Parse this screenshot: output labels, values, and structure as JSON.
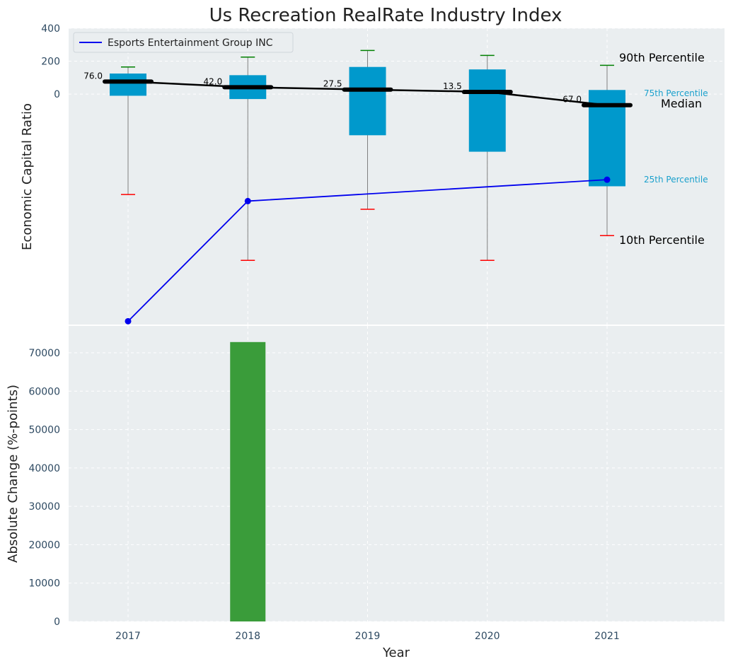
{
  "title": "Us Recreation RealRate Industry Index",
  "colors": {
    "panel_bg": "#eaeef0",
    "box": "#0099cc",
    "median_line": "#000000",
    "whisker_top": "#008000",
    "whisker_bottom": "#ff0000",
    "company_line": "#0000ee",
    "bar": "#3a9c3a"
  },
  "chart_data": [
    {
      "type": "box",
      "ylabel": "Economic Capital Ratio",
      "yticks": [
        "0",
        "200",
        "400"
      ],
      "ylim": [
        -1400,
        400
      ],
      "categories": [
        "2017",
        "2018",
        "2019",
        "2020",
        "2021"
      ],
      "p10": [
        -610,
        -1010,
        -700,
        -1010,
        -860
      ],
      "p25": [
        -10,
        -30,
        -250,
        -350,
        -560
      ],
      "median": [
        76.0,
        42.0,
        27.5,
        13.5,
        -67.0
      ],
      "median_labels": [
        "76.0",
        "42.0",
        "27.5",
        "13.5",
        "-67.0"
      ],
      "p75": [
        125,
        115,
        165,
        150,
        25
      ],
      "p90": [
        165,
        225,
        265,
        235,
        175
      ],
      "series": [
        {
          "name": "Esports Entertainment Group INC",
          "values": [
            -1380,
            -650,
            null,
            null,
            -520
          ]
        }
      ],
      "legend": "top-left",
      "annotations": {
        "p90": "90th Percentile",
        "p75": "75th Percentile",
        "median": "Median",
        "p25": "25th Percentile",
        "p10": "10th Percentile"
      }
    },
    {
      "type": "bar",
      "categories": [
        "2017",
        "2018",
        "2019",
        "2020",
        "2021"
      ],
      "values": [
        0,
        72800,
        0,
        0,
        0
      ],
      "ylabel": "Absolute Change (%-points)",
      "xlabel": "Year",
      "yticks": [
        "0",
        "10000",
        "20000",
        "30000",
        "40000",
        "50000",
        "60000",
        "70000"
      ],
      "ylim": [
        0,
        77000
      ]
    }
  ]
}
